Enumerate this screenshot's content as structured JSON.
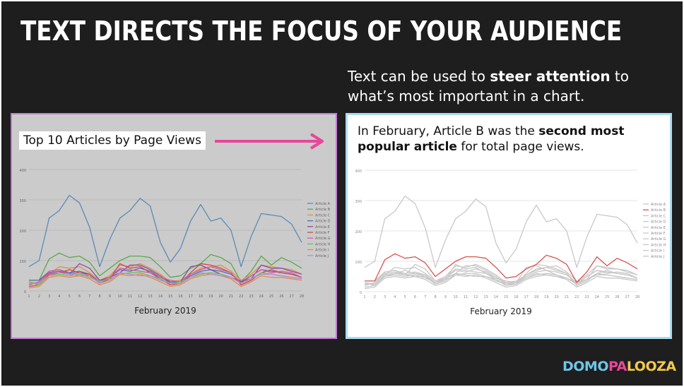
{
  "slide": {
    "title": "TEXT DIRECTS THE FOCUS OF YOUR AUDIENCE",
    "subtitle": {
      "line1_pre": "Text can be used to ",
      "line1_bold": "steer attention",
      "line1_post": " to",
      "line2": "what’s most important in a chart."
    },
    "logo": {
      "part1": "DOMO",
      "part2": "PA",
      "part3": "LOOZA"
    }
  },
  "left_panel": {
    "chart_title": "Top 10 Articles by Page Views",
    "xlabel": "February 2019"
  },
  "right_panel": {
    "caption_pre": "In February, Article B was the ",
    "caption_bold": "second most popular article",
    "caption_post": " for total page views.",
    "xlabel": "February 2019"
  },
  "colors": {
    "highlight": "#e8479a",
    "article_b_highlight": "#d9534f",
    "muted": "#c8c8c8"
  },
  "chart_data": {
    "type": "line",
    "x": [
      1,
      2,
      3,
      4,
      5,
      6,
      7,
      8,
      9,
      10,
      11,
      12,
      13,
      14,
      15,
      16,
      17,
      18,
      19,
      20,
      21,
      22,
      23,
      24,
      25,
      26,
      27,
      28
    ],
    "xlabel": "February 2019",
    "ylim": [
      0,
      400
    ],
    "yticks": [
      0,
      100,
      200,
      300,
      400
    ],
    "legend": "right",
    "series": [
      {
        "name": "Article A",
        "color": "#5b8bb6",
        "values": [
          80,
          100,
          240,
          265,
          315,
          290,
          210,
          80,
          170,
          240,
          265,
          305,
          280,
          160,
          95,
          140,
          230,
          285,
          230,
          240,
          200,
          80,
          180,
          255,
          250,
          245,
          220,
          160
        ]
      },
      {
        "name": "Article B",
        "color": "#5aa84a",
        "values": [
          35,
          35,
          105,
          125,
          110,
          115,
          95,
          50,
          75,
          100,
          115,
          115,
          110,
          80,
          45,
          50,
          75,
          90,
          120,
          110,
          90,
          30,
          65,
          115,
          85,
          110,
          95,
          75
        ]
      },
      {
        "name": "Article C",
        "color": "#e0913a",
        "values": [
          30,
          25,
          55,
          80,
          75,
          80,
          60,
          35,
          50,
          85,
          80,
          90,
          75,
          55,
          30,
          35,
          55,
          75,
          80,
          85,
          65,
          35,
          55,
          85,
          80,
          75,
          70,
          55
        ]
      },
      {
        "name": "Article D",
        "color": "#4b6fb0",
        "values": [
          35,
          35,
          65,
          70,
          60,
          65,
          55,
          30,
          45,
          70,
          65,
          75,
          65,
          45,
          30,
          30,
          50,
          65,
          70,
          65,
          55,
          30,
          50,
          70,
          65,
          60,
          55,
          45
        ]
      },
      {
        "name": "Article E",
        "color": "#8b4aa8",
        "values": [
          20,
          30,
          60,
          65,
          55,
          90,
          75,
          35,
          45,
          60,
          85,
          85,
          70,
          50,
          25,
          30,
          80,
          85,
          70,
          55,
          45,
          30,
          40,
          85,
          75,
          75,
          65,
          55
        ]
      },
      {
        "name": "Article F",
        "color": "#c94a4a",
        "values": [
          15,
          20,
          55,
          60,
          70,
          60,
          55,
          25,
          40,
          90,
          75,
          80,
          60,
          40,
          20,
          25,
          60,
          90,
          85,
          75,
          60,
          20,
          35,
          60,
          70,
          60,
          55,
          45
        ]
      },
      {
        "name": "Article G",
        "color": "#d85aa0",
        "values": [
          20,
          30,
          65,
          70,
          55,
          60,
          50,
          30,
          45,
          75,
          70,
          65,
          60,
          45,
          35,
          30,
          55,
          70,
          80,
          70,
          60,
          25,
          50,
          70,
          60,
          65,
          60,
          45
        ]
      },
      {
        "name": "Article H",
        "color": "#6cc060",
        "values": [
          30,
          20,
          50,
          55,
          50,
          55,
          45,
          30,
          40,
          55,
          60,
          60,
          50,
          40,
          25,
          30,
          45,
          55,
          60,
          55,
          45,
          25,
          40,
          60,
          55,
          50,
          45,
          40
        ]
      },
      {
        "name": "Article I",
        "color": "#e88a4a",
        "values": [
          10,
          15,
          45,
          50,
          45,
          50,
          40,
          20,
          30,
          55,
          50,
          55,
          45,
          30,
          15,
          20,
          40,
          50,
          55,
          50,
          40,
          15,
          30,
          50,
          45,
          45,
          40,
          35
        ]
      },
      {
        "name": "Article J",
        "color": "#b78ad6",
        "values": [
          25,
          25,
          50,
          60,
          55,
          50,
          50,
          25,
          35,
          60,
          55,
          50,
          50,
          35,
          25,
          25,
          45,
          60,
          55,
          50,
          45,
          25,
          40,
          55,
          55,
          50,
          45,
          40
        ]
      }
    ]
  }
}
